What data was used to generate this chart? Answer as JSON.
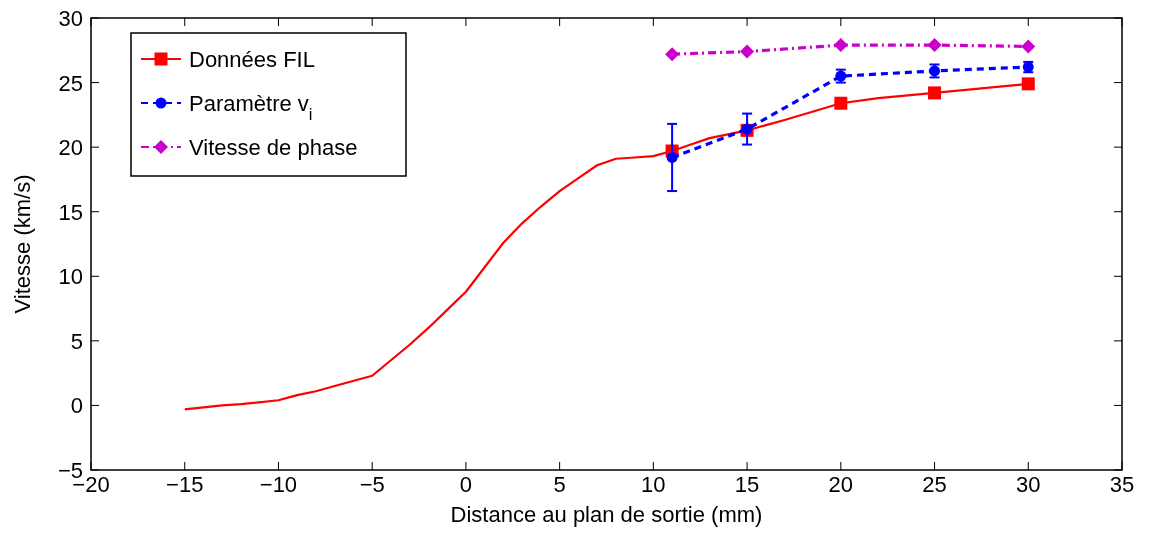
{
  "chart_data": {
    "type": "line",
    "xlabel": "Distance au plan de sortie (mm)",
    "ylabel": "Vitesse (km/s)",
    "xlim": [
      -20,
      35
    ],
    "xticks": [
      -20,
      -15,
      -10,
      -5,
      0,
      5,
      10,
      15,
      20,
      25,
      30,
      35
    ],
    "ylim": [
      -5,
      30
    ],
    "yticks": [
      -5,
      0,
      5,
      10,
      15,
      20,
      25,
      30
    ],
    "grid": false,
    "legend": "top left",
    "series": [
      {
        "color": "#ff0000",
        "marker": "none",
        "line_style": "solid",
        "x": [
          -15,
          -13,
          -12,
          -10,
          -9,
          -8,
          -7,
          -5,
          -4,
          -3,
          -2,
          -1,
          0,
          1,
          2,
          3,
          4,
          5,
          6,
          7,
          8,
          9,
          10,
          11,
          12,
          13,
          15,
          17,
          20,
          22,
          25,
          30
        ],
        "values": [
          -0.3,
          0,
          0.1,
          0.4,
          0.8,
          1.1,
          1.5,
          2.3,
          3.5,
          4.7,
          6,
          7.4,
          8.8,
          10.7,
          12.6,
          14.1,
          15.4,
          16.6,
          17.6,
          18.6,
          19.1,
          19.2,
          19.3,
          19.7,
          20.2,
          20.7,
          21.3,
          22.1,
          23.4,
          23.8,
          24.2,
          24.9
        ]
      },
      {
        "name": "Données FIL",
        "type": "scatter",
        "color": "#ff0000",
        "marker": "square",
        "line_style": "solid",
        "x": [
          11,
          15,
          20,
          25,
          30
        ],
        "values": [
          19.7,
          21.3,
          23.4,
          24.2,
          24.9
        ]
      },
      {
        "name": "Paramètre v$_{i}$",
        "color": "#0000ff",
        "marker": "circle",
        "line_style": "dashed",
        "x": [
          11,
          15,
          20,
          25,
          30
        ],
        "values": [
          19.2,
          21.4,
          25.5,
          25.9,
          26.2
        ],
        "errors": [
          2.6,
          1.2,
          0.5,
          0.5,
          0.4
        ]
      },
      {
        "name": "Vitesse de phase",
        "color": "#cc00cc",
        "marker": "diamond",
        "line_style": "dotted",
        "x": [
          11,
          15,
          20,
          25,
          30
        ],
        "values": [
          27.2,
          27.4,
          27.9,
          27.9,
          27.8
        ]
      }
    ]
  }
}
